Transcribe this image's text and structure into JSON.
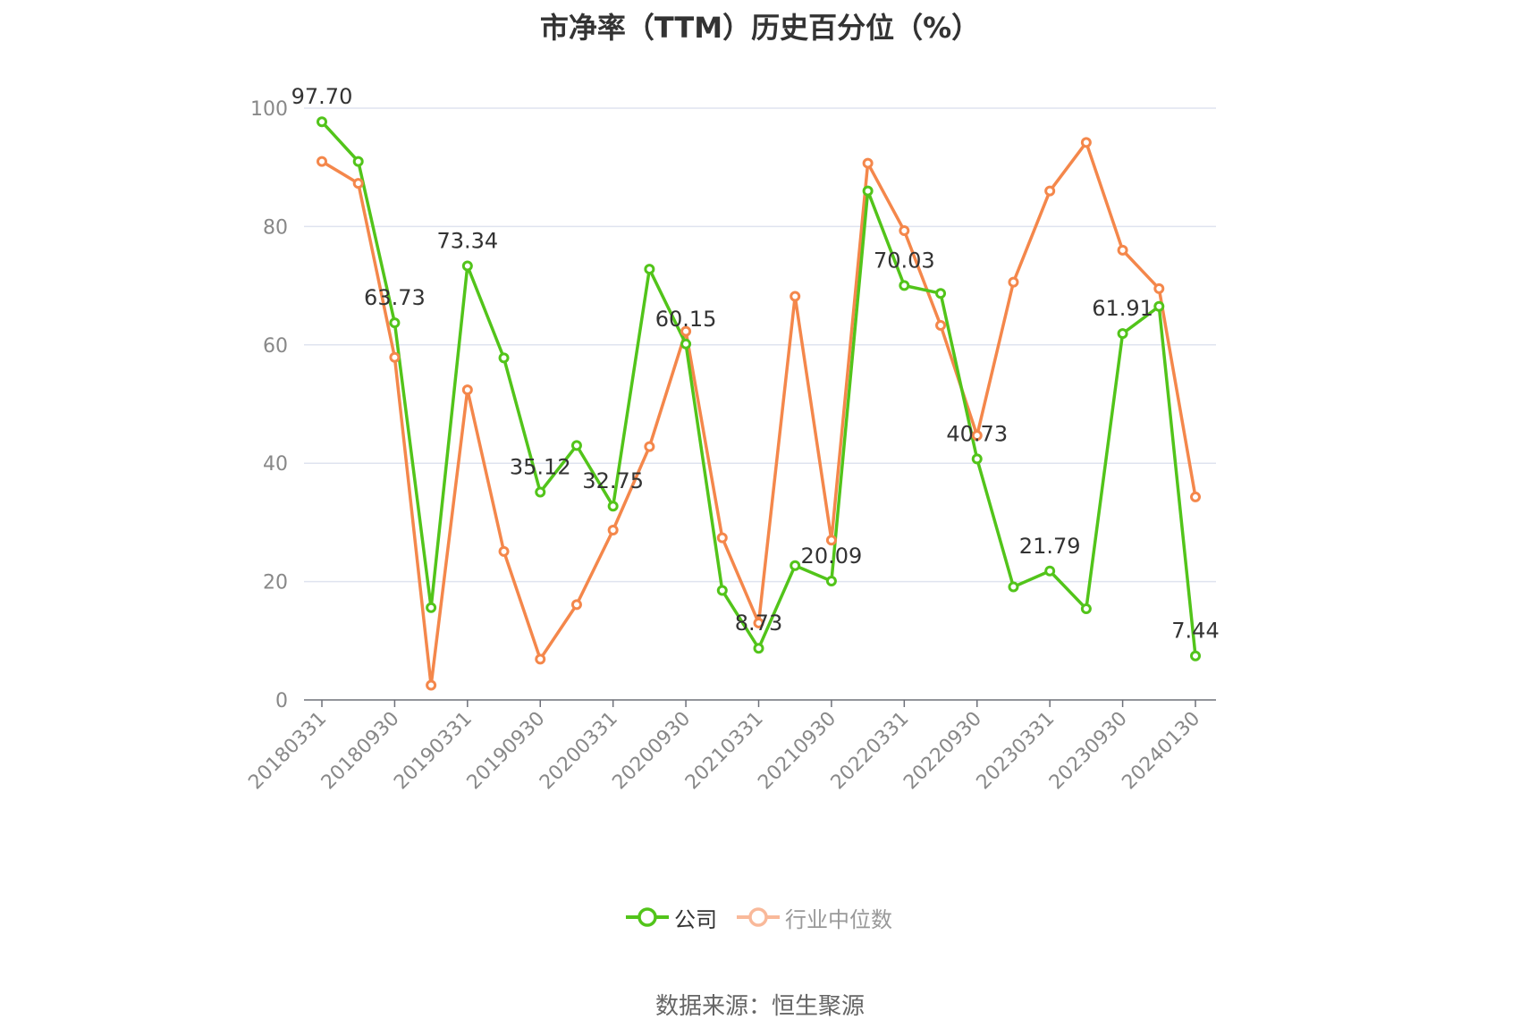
{
  "chart_data": {
    "type": "line",
    "title": "市净率（TTM）历史百分位（%）",
    "xlabel": "",
    "ylabel": "",
    "ylim": [
      0,
      100
    ],
    "yticks": [
      "0",
      "20",
      "40",
      "60",
      "80",
      "100"
    ],
    "grid": "horizontal",
    "legend_position": "bottom-center",
    "x_tick_labels": [
      "20180331",
      "20180930",
      "20190331",
      "20190930",
      "20200331",
      "20200930",
      "20210331",
      "20210930",
      "20220331",
      "20220930",
      "20230331",
      "20230930",
      "20240130"
    ],
    "x": [
      "20180331",
      "20180630",
      "20180930",
      "20181231",
      "20190331",
      "20190630",
      "20190930",
      "20191231",
      "20200331",
      "20200630",
      "20200930",
      "20201231",
      "20210331",
      "20210630",
      "20210930",
      "20211231",
      "20220331",
      "20220630",
      "20220930",
      "20221231",
      "20230331",
      "20230630",
      "20230930",
      "20231231",
      "20240130"
    ],
    "series": [
      {
        "name": "公司",
        "color": "#52c41a",
        "values": [
          97.7,
          91.0,
          63.73,
          15.6,
          73.34,
          57.8,
          35.12,
          43.0,
          32.75,
          72.8,
          60.15,
          18.5,
          8.73,
          22.7,
          20.09,
          86.0,
          70.03,
          68.7,
          40.73,
          19.1,
          21.79,
          15.4,
          61.91,
          66.5,
          7.44
        ],
        "labels": [
          "97.70",
          "",
          "63.73",
          "",
          "73.34",
          "",
          "35.12",
          "",
          "32.75",
          "",
          "60.15",
          "",
          "8.73",
          "",
          "20.09",
          "",
          "70.03",
          "",
          "40.73",
          "",
          "21.79",
          "",
          "61.91",
          "",
          "7.44"
        ]
      },
      {
        "name": "行业中位数",
        "color": "#f4874b",
        "values": [
          91.0,
          87.3,
          57.9,
          2.5,
          52.4,
          25.1,
          6.9,
          16.1,
          28.7,
          42.8,
          62.3,
          27.4,
          13.0,
          68.2,
          27.0,
          90.7,
          79.3,
          63.3,
          44.7,
          70.6,
          86.0,
          94.2,
          76.0,
          69.5,
          34.3
        ]
      }
    ]
  },
  "legend": {
    "company_label": "公司",
    "industry_label": "行业中位数"
  },
  "source_note": "数据来源：恒生聚源"
}
